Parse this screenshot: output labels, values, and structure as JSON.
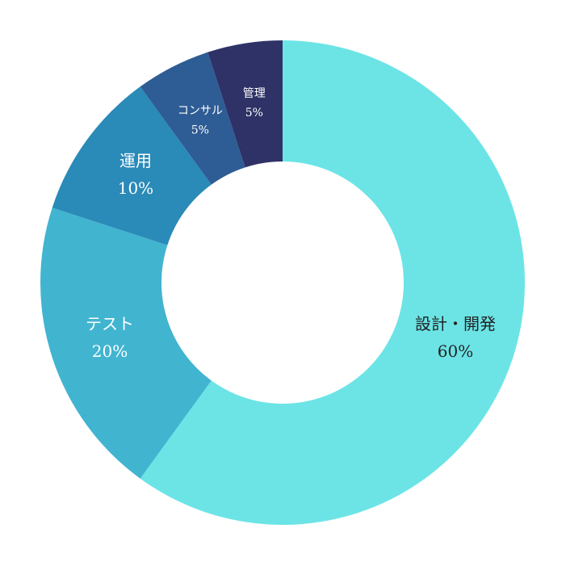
{
  "chart_data": {
    "type": "donut",
    "categories": [
      "設計・開発",
      "テスト",
      "運用",
      "コンサル",
      "管理"
    ],
    "values": [
      60,
      20,
      10,
      5,
      5
    ],
    "value_labels": [
      "60%",
      "20%",
      "10%",
      "5%",
      "5%"
    ],
    "colors": [
      "#6ce4e6",
      "#41b4d0",
      "#2a8ab8",
      "#2e5c94",
      "#2e3266"
    ]
  }
}
